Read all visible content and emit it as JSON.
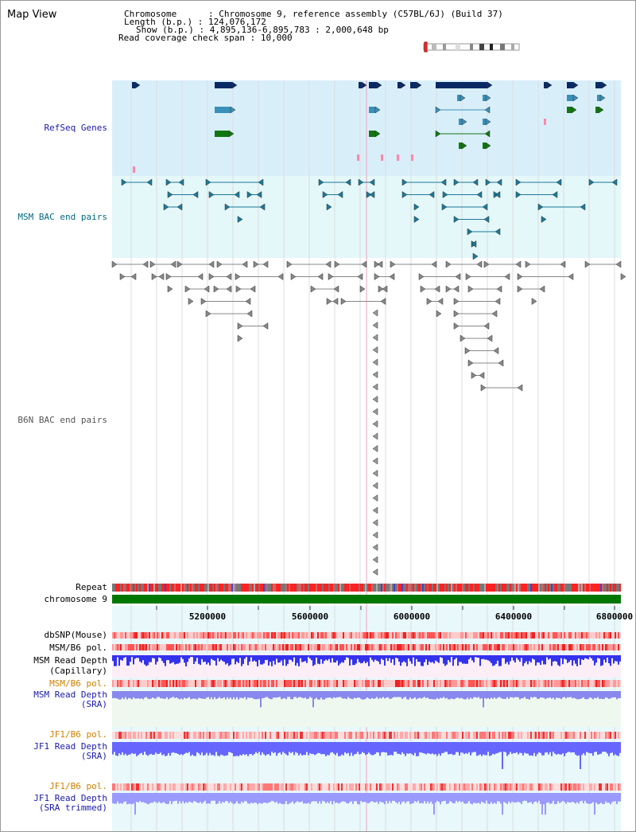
{
  "title": "Map View",
  "info": {
    "chromosome_label": "Chromosome",
    "chromosome_value": "Chromosome 9, reference assembly (C57BL/6J) (Build 37)",
    "length_label": "Length (b.p.)",
    "length_value": "124,076,172",
    "show_label": "Show (b.p.)",
    "show_value": "4,895,136-6,895,783 : 2,000,648 bp",
    "span_label": "Read coverage check span",
    "span_value": "10,000"
  },
  "tracks": {
    "refseq": "RefSeq Genes",
    "msm_bac": "MSM BAC end pairs",
    "b6n_bac": "B6N BAC end pairs",
    "repeat": "Repeat",
    "chromosome": "chromosome 9",
    "dbsnp": "dbSNP(Mouse)",
    "msm_pol_cap": "MSM/B6 pol.",
    "msm_depth_cap_1": "MSM Read Depth",
    "msm_depth_cap_2": "(Capillary)",
    "msm_pol_sra": "MSM/B6 pol.",
    "msm_depth_sra_1": "MSM Read Depth",
    "msm_depth_sra_2": "(SRA)",
    "jf1_pol_1": "JF1/B6 pol.",
    "jf1_depth_1": "JF1 Read Depth",
    "jf1_depth_1b": "(SRA)",
    "jf1_pol_2": "JF1/B6 pol.",
    "jf1_depth_2": "JF1 Read Depth",
    "jf1_depth_2b": "(SRA trimmed)"
  },
  "axis": {
    "ticks": [
      "5200000",
      "5600000",
      "6000000",
      "6400000",
      "6800000"
    ]
  },
  "colors": {
    "refseq_bg": "#d8effa",
    "msm_bg": "#e4f7f9",
    "lower_bg": "#e8f8fb",
    "gene_dark": "#0a2a66",
    "gene_light": "#3a90b8",
    "gene_green": "#117711",
    "chromosome_bar": "#007700",
    "depth_blue": "#3333ee",
    "depth_light": "#7777ff",
    "snp_red": "#ee2222"
  }
}
